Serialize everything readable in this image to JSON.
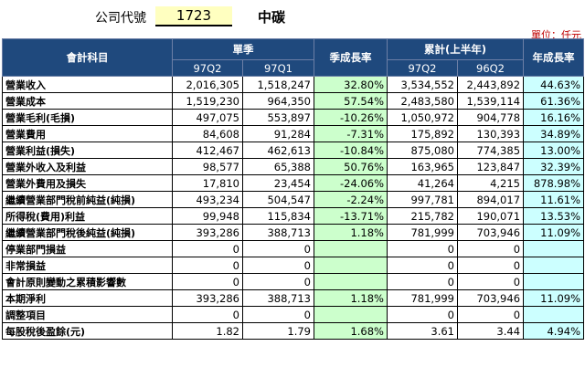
{
  "header": {
    "code_label": "公司代號",
    "code_value": "1723",
    "company_name": "中碳",
    "unit": "單位：仟元"
  },
  "table": {
    "col_item": "會計科目",
    "group_quarter": "單季",
    "col_quarter_growth": "季成長率",
    "group_cumulative": "累計(上半年)",
    "col_year_growth": "年成長率",
    "sub_q_current": "97Q2",
    "sub_q_prev": "97Q1",
    "sub_c_current": "97Q2",
    "sub_c_prev": "96Q2",
    "rows": [
      {
        "item": "營業收入",
        "q_cur": "2,016,305",
        "q_prev": "1,518,247",
        "q_growth": "32.80%",
        "c_cur": "3,534,552",
        "c_prev": "2,443,892",
        "y_growth": "44.63%"
      },
      {
        "item": "營業成本",
        "q_cur": "1,519,230",
        "q_prev": "964,350",
        "q_growth": "57.54%",
        "c_cur": "2,483,580",
        "c_prev": "1,539,114",
        "y_growth": "61.36%"
      },
      {
        "item": "營業毛利(毛損)",
        "q_cur": "497,075",
        "q_prev": "553,897",
        "q_growth": "-10.26%",
        "c_cur": "1,050,972",
        "c_prev": "904,778",
        "y_growth": "16.16%"
      },
      {
        "item": "營業費用",
        "q_cur": "84,608",
        "q_prev": "91,284",
        "q_growth": "-7.31%",
        "c_cur": "175,892",
        "c_prev": "130,393",
        "y_growth": "34.89%"
      },
      {
        "item": "營業利益(損失)",
        "q_cur": "412,467",
        "q_prev": "462,613",
        "q_growth": "-10.84%",
        "c_cur": "875,080",
        "c_prev": "774,385",
        "y_growth": "13.00%"
      },
      {
        "item": "營業外收入及利益",
        "q_cur": "98,577",
        "q_prev": "65,388",
        "q_growth": "50.76%",
        "c_cur": "163,965",
        "c_prev": "123,847",
        "y_growth": "32.39%"
      },
      {
        "item": "營業外費用及損失",
        "q_cur": "17,810",
        "q_prev": "23,454",
        "q_growth": "-24.06%",
        "c_cur": "41,264",
        "c_prev": "4,215",
        "y_growth": "878.98%"
      },
      {
        "item": "繼續營業部門稅前純益(純損)",
        "q_cur": "493,234",
        "q_prev": "504,547",
        "q_growth": "-2.24%",
        "c_cur": "997,781",
        "c_prev": "894,017",
        "y_growth": "11.61%"
      },
      {
        "item": "所得稅(費用)利益",
        "q_cur": "99,948",
        "q_prev": "115,834",
        "q_growth": "-13.71%",
        "c_cur": "215,782",
        "c_prev": "190,071",
        "y_growth": "13.53%"
      },
      {
        "item": "繼續營業部門稅後純益(純損)",
        "q_cur": "393,286",
        "q_prev": "388,713",
        "q_growth": "1.18%",
        "c_cur": "781,999",
        "c_prev": "703,946",
        "y_growth": "11.09%"
      },
      {
        "item": "停業部門損益",
        "q_cur": "0",
        "q_prev": "0",
        "q_growth": "",
        "c_cur": "0",
        "c_prev": "0",
        "y_growth": ""
      },
      {
        "item": "非常損益",
        "q_cur": "0",
        "q_prev": "0",
        "q_growth": "",
        "c_cur": "0",
        "c_prev": "0",
        "y_growth": ""
      },
      {
        "item": "會計原則變動之累積影響數",
        "q_cur": "0",
        "q_prev": "0",
        "q_growth": "",
        "c_cur": "0",
        "c_prev": "0",
        "y_growth": ""
      },
      {
        "item": "本期淨利",
        "q_cur": "393,286",
        "q_prev": "388,713",
        "q_growth": "1.18%",
        "c_cur": "781,999",
        "c_prev": "703,946",
        "y_growth": "11.09%"
      },
      {
        "item": "調整項目",
        "q_cur": "0",
        "q_prev": "0",
        "q_growth": "",
        "c_cur": "0",
        "c_prev": "0",
        "y_growth": ""
      },
      {
        "item": "每股稅後盈餘(元)",
        "q_cur": "1.82",
        "q_prev": "1.79",
        "q_growth": "1.68%",
        "c_cur": "3.61",
        "c_prev": "3.44",
        "y_growth": "4.94%"
      }
    ]
  }
}
